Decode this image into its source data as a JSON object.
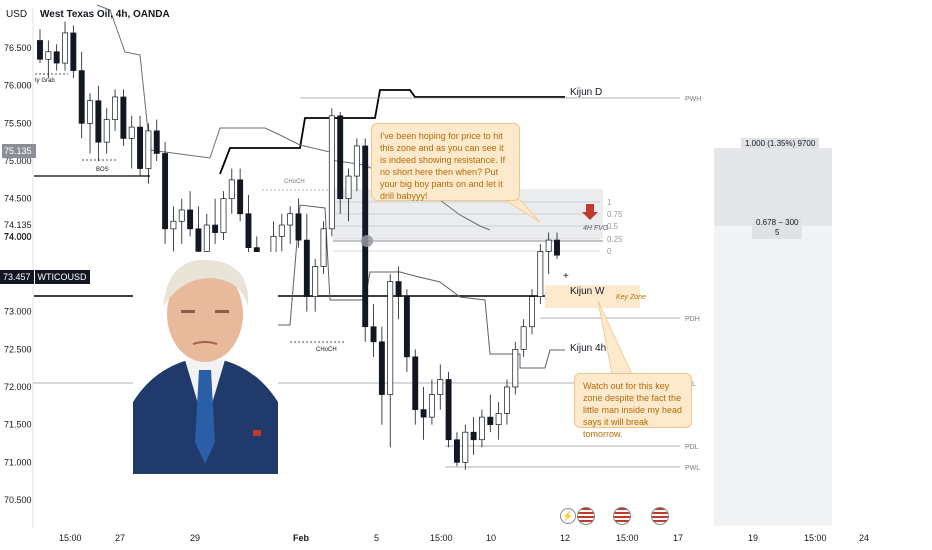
{
  "header": {
    "currency": "USD",
    "title": "West Texas Oil, 4h, OANDA"
  },
  "price_badges": {
    "hover_price": "75.135",
    "symbol_price": "73.457",
    "symbol": "WTICOUSD"
  },
  "notes": {
    "top": "I've been hoping for price to hit this zone and as you can see it is indeed showing resistance. If no short here then when? Put your big boy pants on and let it drill babyyy!",
    "bottom": "Watch out for this key zone despite the fact the little man inside my head says it will break tomorrow."
  },
  "measure": {
    "top_label": "1.000 (1.35%) 9700",
    "mid_label": "0.678 − 300",
    "mid_label_2": "5"
  },
  "labels": {
    "kijun_d": "Kijun D",
    "kijun_w": "Kijun W",
    "kijun_4h": "Kijun 4h",
    "key_zone": "Key Zone",
    "fvg": "4H FVG",
    "pwh": "PWH",
    "pdh": "PDH",
    "pdl": "PDL",
    "pwl": "PWL",
    "pdh_right": "L",
    "bos": "BOS",
    "liq_grab": "ty Grab",
    "choch_1": "CHoCH",
    "choch_2": "CHoCH",
    "fib_1": "1",
    "fib_075": "0.75",
    "fib_05": "0.5",
    "fib_025": "0.25",
    "fib_0": "0"
  },
  "colors": {
    "bull": "#ffffff",
    "bear": "#131722",
    "kijun_w_line": "#000000",
    "kijun_d_line": "#000000",
    "kijun_4h_line": "#5d606b",
    "note_bg": "#fde9cc",
    "note_text": "#b36b09",
    "fvg_zone": "#e6e7ea",
    "key_zone": "#fde9cc",
    "arrow_red": "#c0392b"
  },
  "chart_data": {
    "type": "candlestick",
    "title": "West Texas Oil, 4h, OANDA",
    "ylim": [
      70.3,
      76.9
    ],
    "y_ticks": [
      76.5,
      76.0,
      75.5,
      75.0,
      74.5,
      74.135,
      74.0,
      73.0,
      72.5,
      72.0,
      71.5,
      71.0,
      70.5
    ],
    "y_tick_labels": [
      "76.500",
      "76.000",
      "75.500",
      "75.000",
      "74.500",
      "74.135",
      "74.000",
      "73.000",
      "72.500",
      "72.000",
      "71.500",
      "71.000",
      "70.500"
    ],
    "x_ticks": [
      "15:00",
      "27",
      "29",
      "Feb",
      "5",
      "15:00",
      "10",
      "12",
      "15:00",
      "17",
      "19",
      "15:00",
      "24"
    ],
    "candles": [
      [
        76.6,
        76.75,
        76.3,
        76.35
      ],
      [
        76.35,
        76.6,
        76.1,
        76.45
      ],
      [
        76.45,
        76.55,
        76.2,
        76.3
      ],
      [
        76.3,
        76.85,
        76.2,
        76.7
      ],
      [
        76.7,
        76.8,
        76.1,
        76.2
      ],
      [
        76.2,
        76.45,
        75.3,
        75.5
      ],
      [
        75.5,
        75.9,
        75.1,
        75.8
      ],
      [
        75.8,
        76.0,
        75.0,
        75.25
      ],
      [
        75.25,
        75.7,
        75.1,
        75.55
      ],
      [
        75.55,
        75.95,
        75.4,
        75.85
      ],
      [
        75.85,
        75.95,
        75.2,
        75.3
      ],
      [
        75.3,
        75.6,
        74.9,
        75.45
      ],
      [
        75.45,
        75.6,
        74.8,
        74.9
      ],
      [
        74.9,
        75.5,
        74.7,
        75.4
      ],
      [
        75.4,
        75.55,
        75.0,
        75.1
      ],
      [
        75.1,
        75.25,
        73.9,
        74.1
      ],
      [
        74.1,
        74.4,
        73.8,
        74.2
      ],
      [
        74.2,
        74.5,
        73.9,
        74.35
      ],
      [
        74.35,
        74.6,
        74.0,
        74.1
      ],
      [
        74.1,
        74.4,
        73.6,
        73.8
      ],
      [
        73.8,
        74.3,
        73.7,
        74.15
      ],
      [
        74.15,
        74.5,
        73.9,
        74.05
      ],
      [
        74.05,
        74.6,
        73.95,
        74.5
      ],
      [
        74.5,
        74.9,
        74.3,
        74.75
      ],
      [
        74.75,
        74.9,
        74.2,
        74.3
      ],
      [
        74.3,
        74.55,
        73.7,
        73.85
      ],
      [
        73.85,
        74.0,
        73.1,
        73.3
      ],
      [
        73.3,
        73.6,
        73.0,
        73.5
      ],
      [
        73.5,
        74.2,
        73.4,
        74.0
      ],
      [
        74.0,
        74.3,
        73.8,
        74.15
      ],
      [
        74.15,
        74.4,
        73.9,
        74.3
      ],
      [
        74.3,
        74.5,
        73.85,
        73.95
      ],
      [
        73.95,
        74.3,
        73.0,
        73.2
      ],
      [
        73.2,
        73.7,
        73.0,
        73.6
      ],
      [
        73.6,
        74.2,
        73.5,
        74.1
      ],
      [
        74.1,
        75.7,
        74.0,
        75.6
      ],
      [
        75.6,
        75.65,
        74.3,
        74.5
      ],
      [
        74.5,
        74.9,
        74.2,
        74.8
      ],
      [
        74.8,
        75.3,
        74.6,
        75.2
      ],
      [
        75.2,
        75.3,
        72.6,
        72.8
      ],
      [
        72.8,
        73.1,
        72.4,
        72.6
      ],
      [
        72.6,
        72.8,
        71.5,
        71.9
      ],
      [
        71.9,
        73.5,
        71.2,
        73.4
      ],
      [
        73.4,
        73.6,
        72.9,
        73.2
      ],
      [
        73.2,
        73.3,
        72.2,
        72.4
      ],
      [
        72.4,
        72.5,
        71.5,
        71.7
      ],
      [
        71.7,
        72.0,
        71.3,
        71.6
      ],
      [
        71.6,
        72.1,
        71.5,
        71.9
      ],
      [
        71.9,
        72.3,
        71.7,
        72.1
      ],
      [
        72.1,
        72.2,
        71.2,
        71.3
      ],
      [
        71.3,
        71.4,
        70.95,
        71.0
      ],
      [
        71.0,
        71.5,
        70.9,
        71.4
      ],
      [
        71.4,
        71.6,
        71.1,
        71.3
      ],
      [
        71.3,
        71.7,
        71.2,
        71.6
      ],
      [
        71.6,
        71.9,
        71.4,
        71.5
      ],
      [
        71.5,
        71.8,
        71.3,
        71.65
      ],
      [
        71.65,
        72.1,
        71.5,
        72.0
      ],
      [
        72.0,
        72.6,
        71.9,
        72.5
      ],
      [
        72.5,
        72.9,
        72.4,
        72.8
      ],
      [
        72.8,
        73.3,
        72.7,
        73.2
      ],
      [
        73.2,
        73.9,
        73.1,
        73.8
      ],
      [
        73.8,
        74.05,
        73.5,
        73.95
      ],
      [
        73.95,
        74.05,
        73.7,
        73.75
      ]
    ],
    "series": [
      {
        "name": "Kijun D",
        "values": [
          72.85,
          75.4,
          75.5,
          75.55,
          75.6
        ]
      },
      {
        "name": "Kijun W",
        "values": [
          73.2
        ]
      },
      {
        "name": "Kijun 4h",
        "values": [
          72.3,
          72.4
        ]
      }
    ],
    "levels": [
      {
        "name": "PWH",
        "value": 75.55
      },
      {
        "name": "PDH",
        "value": 72.95
      },
      {
        "name": "PDL",
        "value": 71.2
      },
      {
        "name": "PWL",
        "value": 70.93
      }
    ],
    "zones": [
      {
        "name": "4H FVG",
        "from": 73.97,
        "to": 74.63
      },
      {
        "name": "Key Zone",
        "from": 73.05,
        "to": 73.35
      }
    ],
    "fib_levels": [
      1,
      0.75,
      0.5,
      0.25,
      0
    ],
    "grid": false
  }
}
